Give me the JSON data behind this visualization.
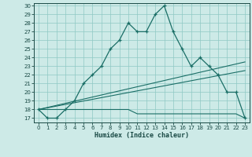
{
  "xlabel": "Humidex (Indice chaleur)",
  "bg_color": "#cdeae7",
  "grid_color": "#8fc8c4",
  "line_color": "#1a6e66",
  "xlim": [
    -0.5,
    23.5
  ],
  "ylim": [
    16.5,
    30.3
  ],
  "xticks": [
    0,
    1,
    2,
    3,
    4,
    5,
    6,
    7,
    8,
    9,
    10,
    11,
    12,
    13,
    14,
    15,
    16,
    17,
    18,
    19,
    20,
    21,
    22,
    23
  ],
  "yticks": [
    17,
    18,
    19,
    20,
    21,
    22,
    23,
    24,
    25,
    26,
    27,
    28,
    29,
    30
  ],
  "line1_x": [
    0,
    1,
    2,
    3,
    4,
    5,
    6,
    7,
    8,
    9,
    10,
    11,
    12,
    13,
    14,
    15,
    16,
    17,
    18,
    19,
    20,
    21,
    22,
    23
  ],
  "line1_y": [
    18,
    17,
    17,
    18,
    19,
    21,
    22,
    23,
    25,
    26,
    28,
    27,
    27,
    29,
    30,
    27,
    25,
    23,
    24,
    23,
    22,
    20,
    20,
    17
  ],
  "line2_x": [
    0,
    1,
    2,
    3,
    4,
    5,
    6,
    7,
    8,
    9,
    10,
    11,
    12,
    13,
    14,
    15,
    16,
    17,
    18,
    19,
    20,
    21,
    22,
    23
  ],
  "line2_y": [
    18,
    18,
    18,
    18,
    18,
    18,
    18,
    18,
    18,
    18,
    18,
    17.5,
    17.5,
    17.5,
    17.5,
    17.5,
    17.5,
    17.5,
    17.5,
    17.5,
    17.5,
    17.5,
    17.5,
    17
  ],
  "line3_x": [
    0,
    23
  ],
  "line3_y": [
    18,
    22.5
  ],
  "line4_x": [
    0,
    23
  ],
  "line4_y": [
    18,
    23.5
  ]
}
